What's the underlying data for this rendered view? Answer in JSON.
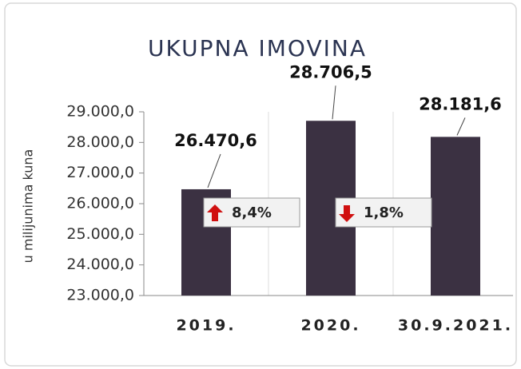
{
  "chart_data": {
    "type": "bar",
    "title": "UKUPNA IMOVINA",
    "y_label": "u milijunima kuna",
    "categories": [
      "2019.",
      "2020.",
      "30.9.2021."
    ],
    "values": [
      26470.6,
      28706.5,
      28181.6
    ],
    "value_labels": [
      "26.470,6",
      "28.706,5",
      "28.181,6"
    ],
    "color": "#3b3142",
    "ylim": [
      23000,
      29000
    ],
    "yticks": [
      {
        "value": 23000,
        "label": "23.000,0"
      },
      {
        "value": 24000,
        "label": "24.000,0"
      },
      {
        "value": 25000,
        "label": "25.000,0"
      },
      {
        "value": 26000,
        "label": "26.000,0"
      },
      {
        "value": 27000,
        "label": "27.000,0"
      },
      {
        "value": 28000,
        "label": "28.000,0"
      },
      {
        "value": 29000,
        "label": "29.000,0"
      }
    ],
    "annotations": [
      "8,4%",
      "1,8%"
    ]
  }
}
